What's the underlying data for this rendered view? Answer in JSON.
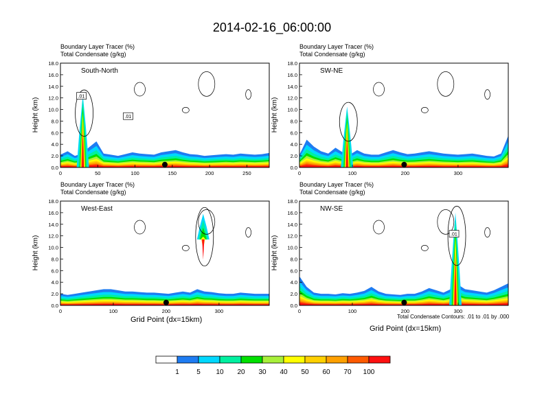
{
  "main_title": "2014-02-16_06:00:00",
  "colors": {
    "levels": [
      "#ffffff",
      "#1e7cf2",
      "#00d8ff",
      "#00f0a0",
      "#00e000",
      "#a8f03a",
      "#ffff00",
      "#ffd000",
      "#ffa000",
      "#ff5a00",
      "#ff1010"
    ]
  },
  "colorbar": {
    "labels": [
      "1",
      "5",
      "10",
      "20",
      "30",
      "40",
      "50",
      "60",
      "70",
      "100"
    ]
  },
  "footer_note": "Total Condensate Contours: .01 to .01 by .000",
  "x_axis_label": "Grid Point (dx=15km)",
  "chart_data": [
    {
      "type": "contour",
      "panel_label": "South-North",
      "subtitle_left1": "Boundary Layer Tracer",
      "subtitle_right1": "(%)",
      "subtitle_left2": "Total Condensate",
      "subtitle_right2": "(g/kg)",
      "ylabel": "Height (km)",
      "yticks": [
        "0.0",
        "2.0",
        "4.0",
        "6.0",
        "8.0",
        "10.0",
        "12.0",
        "14.0",
        "16.0",
        "18.0"
      ],
      "ylim": [
        0,
        18
      ],
      "xlim": [
        0,
        280
      ],
      "xticks": [
        0,
        50,
        100,
        150,
        200,
        250
      ],
      "xtick_labels": [
        "0",
        "50",
        "100",
        "150",
        "200",
        "250"
      ],
      "xlabel": "",
      "contour_labels": [
        ".01",
        ".01"
      ],
      "boundary_layer_top_km": [
        2.2,
        2.8,
        2.0,
        2.4,
        3.5,
        4.5,
        2.4,
        2.2,
        2.0,
        2.3,
        2.6,
        2.4,
        2.3,
        2.2,
        2.6,
        2.8,
        3.0,
        2.6,
        2.3,
        2.2,
        2.0,
        2.1,
        2.2,
        2.3,
        2.2,
        2.4,
        2.3,
        2.2,
        2.3,
        2.5
      ],
      "plume_x": [
        30
      ],
      "plume_top_km": [
        12.5
      ],
      "site_marker_x": 140
    },
    {
      "type": "contour",
      "panel_label": "SW-NE",
      "subtitle_left1": "Boundary Layer Tracer",
      "subtitle_right1": "(%)",
      "subtitle_left2": "Total Condensate",
      "subtitle_right2": "(g/kg)",
      "ylabel": "Height (km)",
      "yticks": [
        "0.0",
        "2.0",
        "4.0",
        "6.0",
        "8.0",
        "10.0",
        "12.0",
        "14.0",
        "16.0",
        "18.0"
      ],
      "ylim": [
        0,
        18
      ],
      "xlim": [
        0,
        395
      ],
      "xticks": [
        0,
        100,
        200,
        300
      ],
      "xtick_labels": [
        "0",
        "100",
        "200",
        "300"
      ],
      "xlabel": "",
      "contour_labels": [],
      "boundary_layer_top_km": [
        2.2,
        4.8,
        3.6,
        2.8,
        2.4,
        3.4,
        2.6,
        2.2,
        3.0,
        2.4,
        2.2,
        2.2,
        2.6,
        3.0,
        2.6,
        2.3,
        2.4,
        2.6,
        2.8,
        2.6,
        2.4,
        2.3,
        2.2,
        2.3,
        2.4,
        2.2,
        2.0,
        1.9,
        2.4,
        5.5
      ],
      "plume_x": [
        90
      ],
      "plume_top_km": [
        10.5
      ],
      "site_marker_x": 198
    },
    {
      "type": "contour",
      "panel_label": "West-East",
      "subtitle_left1": "Boundary Layer Tracer",
      "subtitle_right1": "(%)",
      "subtitle_left2": "Total Condensate",
      "subtitle_right2": "(g/kg)",
      "ylabel": "Height (km)",
      "yticks": [
        "0.0",
        "2.0",
        "4.0",
        "6.0",
        "8.0",
        "10.0",
        "12.0",
        "14.0",
        "16.0",
        "18.0"
      ],
      "ylim": [
        0,
        18
      ],
      "xlim": [
        0,
        395
      ],
      "xticks": [
        0,
        100,
        200,
        300
      ],
      "xtick_labels": [
        "0",
        "100",
        "200",
        "300"
      ],
      "xlabel": "Grid Point (dx=15km)",
      "contour_labels": [],
      "boundary_layer_top_km": [
        2.0,
        1.8,
        2.0,
        2.2,
        2.4,
        2.6,
        2.8,
        2.8,
        2.6,
        2.4,
        2.4,
        2.3,
        2.2,
        2.2,
        2.1,
        2.0,
        2.2,
        2.4,
        2.2,
        2.8,
        2.4,
        2.3,
        2.1,
        2.0,
        2.0,
        2.2,
        2.1,
        2.0,
        2.0,
        2.0
      ],
      "plume_x": [
        270
      ],
      "plume_top_km": [
        15.8
      ],
      "site_marker_x": 200
    },
    {
      "type": "contour",
      "panel_label": "NW-SE",
      "subtitle_left1": "Boundary Layer Tracer",
      "subtitle_right1": "(%)",
      "subtitle_left2": "Total Condensate",
      "subtitle_right2": "(g/kg)",
      "ylabel": "Height (km)",
      "yticks": [
        "0.0",
        "2.0",
        "4.0",
        "6.0",
        "8.0",
        "10.0",
        "12.0",
        "14.0",
        "16.0",
        "18.0"
      ],
      "ylim": [
        0,
        18
      ],
      "xlim": [
        0,
        395
      ],
      "xticks": [
        0,
        100,
        200,
        300
      ],
      "xtick_labels": [
        "0",
        "100",
        "200",
        "300"
      ],
      "xlabel": "Grid Point (dx=15km)",
      "contour_labels": [
        ".01"
      ],
      "boundary_layer_top_km": [
        5.0,
        3.2,
        2.2,
        2.0,
        2.0,
        1.9,
        2.1,
        2.0,
        2.2,
        2.5,
        3.2,
        2.4,
        2.0,
        1.9,
        1.8,
        2.0,
        2.0,
        2.4,
        3.0,
        2.6,
        2.2,
        2.8,
        3.6,
        2.8,
        2.6,
        2.4,
        2.2,
        2.6,
        3.2,
        3.8
      ],
      "plume_x": [
        295
      ],
      "plume_top_km": [
        16.0
      ],
      "site_marker_x": 198
    }
  ]
}
